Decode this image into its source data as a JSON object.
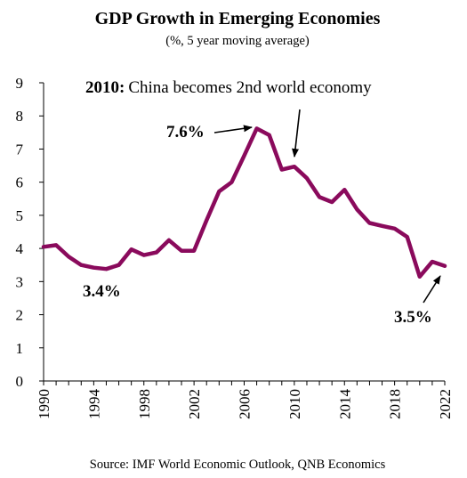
{
  "chart_data": {
    "type": "line",
    "title": "GDP Growth in Emerging Economies",
    "subtitle": "(%, 5 year moving average)",
    "xlabel": "",
    "ylabel": "",
    "xlim": [
      1990,
      2022
    ],
    "ylim": [
      0,
      9
    ],
    "y_ticks": [
      "0",
      "1",
      "2",
      "3",
      "4",
      "5",
      "6",
      "7",
      "8",
      "9"
    ],
    "x_ticks": [
      "1990",
      "1994",
      "1998",
      "2002",
      "2006",
      "2010",
      "2014",
      "2018",
      "2022"
    ],
    "grid": false,
    "color": "#8a0a5c",
    "series": [
      {
        "x": [
          1990,
          1991,
          1992,
          1993,
          1994,
          1995,
          1996,
          1997,
          1998,
          1999,
          2000,
          2001,
          2002,
          2003,
          2004,
          2005,
          2006,
          2007,
          2008,
          2009,
          2010,
          2011,
          2012,
          2013,
          2014,
          2015,
          2016,
          2017,
          2018,
          2019,
          2020,
          2021,
          2022
        ],
        "values": [
          4.05,
          4.1,
          3.75,
          3.5,
          3.42,
          3.38,
          3.5,
          3.97,
          3.8,
          3.88,
          4.25,
          3.93,
          3.93,
          4.85,
          5.72,
          6.0,
          6.8,
          7.62,
          7.42,
          6.38,
          6.47,
          6.12,
          5.55,
          5.4,
          5.77,
          5.18,
          4.77,
          4.68,
          4.6,
          4.35,
          3.15,
          3.6,
          3.47
        ]
      }
    ],
    "annotations": {
      "a2010_bold": "2010:",
      "a2010_text": "China becomes 2nd world economy",
      "peak": "7.6%",
      "low": "3.4%",
      "end": "3.5%"
    },
    "source": "Source: IMF World Economic Outlook, QNB Economics"
  }
}
